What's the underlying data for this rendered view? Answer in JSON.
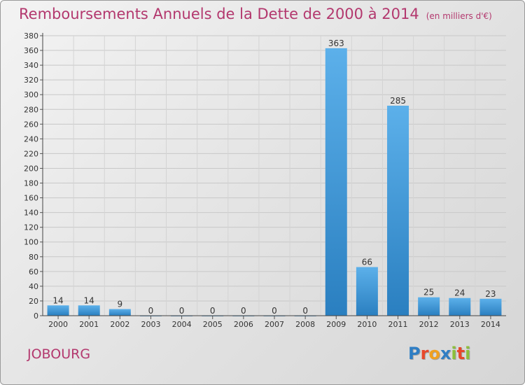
{
  "title": "Remboursements Annuels de la Dette de 2000 à 2014",
  "subtitle": "(en milliers d'€)",
  "commune": "JOBOURG",
  "logo": {
    "letters": [
      "P",
      "r",
      "o",
      "x",
      "i",
      "t",
      "i"
    ],
    "colors": [
      "#2f7ec4",
      "#e8472b",
      "#f0a020",
      "#2f7ec4",
      "#8cbf3a",
      "#e8472b",
      "#8cbf3a"
    ]
  },
  "colors": {
    "title": "#b3386e",
    "bar_light": "#5cb0ea",
    "bar_dark": "#2a7fc0",
    "axis": "#444444"
  },
  "chart_data": {
    "type": "bar",
    "title": "Remboursements Annuels de la Dette de 2000 à 2014",
    "xlabel": "",
    "ylabel": "",
    "unit": "(en milliers d'€)",
    "categories": [
      "2000",
      "2001",
      "2002",
      "2003",
      "2004",
      "2005",
      "2006",
      "2007",
      "2008",
      "2009",
      "2010",
      "2011",
      "2012",
      "2013",
      "2014"
    ],
    "values": [
      14,
      14,
      9,
      0,
      0,
      0,
      0,
      0,
      0,
      363,
      66,
      285,
      25,
      24,
      23
    ],
    "ylim": [
      0,
      380
    ],
    "yticks": [
      0,
      20,
      40,
      60,
      80,
      100,
      120,
      140,
      160,
      180,
      200,
      220,
      240,
      260,
      280,
      300,
      320,
      340,
      360,
      380
    ],
    "grid": true,
    "legend": "none"
  }
}
